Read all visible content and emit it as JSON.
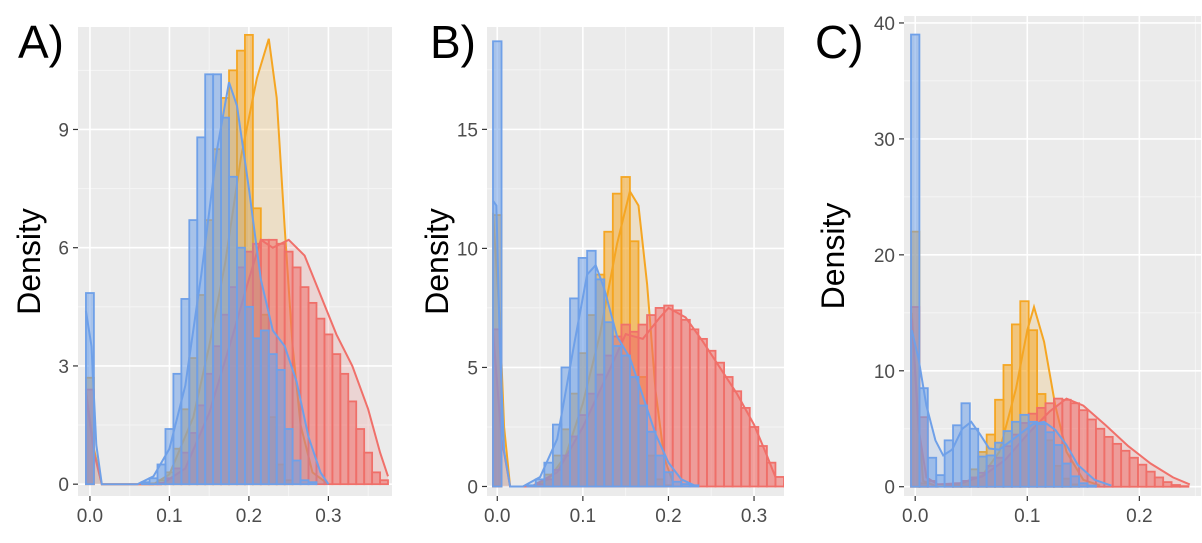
{
  "figure": {
    "colors": {
      "panel_bg": "#ebebeb",
      "grid_major": "#ffffff",
      "grid_minor": "#f5f5f5",
      "blue": "#6fa0e8",
      "orange": "#f5a623",
      "red": "#f0706a"
    }
  },
  "chart_data": [
    {
      "type": "histogram",
      "panel_label": "A)",
      "ylabel": "Density",
      "xlabel": "",
      "xlim": [
        -0.015,
        0.38
      ],
      "ylim": [
        -0.3,
        11.6
      ],
      "xticks": [
        0.0,
        0.1,
        0.2,
        0.3
      ],
      "xtick_labels": [
        "0.0",
        "0.1",
        "0.2",
        "0.3"
      ],
      "yticks": [
        0,
        3,
        6,
        9
      ],
      "ytick_labels": [
        "0",
        "3",
        "6",
        "9"
      ],
      "bin_width": 0.01,
      "series": [
        {
          "color": "orange",
          "bins_start": -0.005,
          "heights": [
            2.7,
            0,
            0,
            0,
            0,
            0,
            0,
            0,
            0.02,
            0.1,
            0.3,
            0.9,
            1.9,
            3.2,
            4.8,
            6.7,
            8.5,
            9.8,
            10.5,
            11.0,
            11.4,
            7.0,
            4.3,
            1.7,
            0.5,
            0.1
          ],
          "curve": [
            [
              -0.005,
              2.4
            ],
            [
              0.005,
              0.9
            ],
            [
              0.015,
              0
            ],
            [
              0.08,
              0
            ],
            [
              0.1,
              0.25
            ],
            [
              0.13,
              1.7
            ],
            [
              0.15,
              3.5
            ],
            [
              0.17,
              5.6
            ],
            [
              0.19,
              8.3
            ],
            [
              0.21,
              10.3
            ],
            [
              0.225,
              11.3
            ],
            [
              0.235,
              9.8
            ],
            [
              0.245,
              6.5
            ],
            [
              0.255,
              3.5
            ],
            [
              0.265,
              1.5
            ],
            [
              0.28,
              0.3
            ],
            [
              0.3,
              0
            ]
          ]
        },
        {
          "color": "red",
          "bins_start": -0.005,
          "heights": [
            2.4,
            0,
            0,
            0,
            0,
            0,
            0,
            0,
            0,
            0.03,
            0.15,
            0.4,
            0.8,
            1.3,
            2.0,
            2.8,
            3.5,
            4.3,
            5.0,
            5.5,
            5.9,
            6.1,
            6.2,
            6.2,
            6.1,
            5.9,
            5.5,
            5.0,
            4.6,
            4.2,
            3.8,
            3.3,
            2.8,
            2.1,
            1.4,
            0.8,
            0.3,
            0.1
          ],
          "curve": [
            [
              -0.005,
              2.3
            ],
            [
              0.005,
              0.8
            ],
            [
              0.015,
              0
            ],
            [
              0.09,
              0
            ],
            [
              0.12,
              0.4
            ],
            [
              0.15,
              1.8
            ],
            [
              0.18,
              3.8
            ],
            [
              0.2,
              5.2
            ],
            [
              0.215,
              6.2
            ],
            [
              0.23,
              6.0
            ],
            [
              0.25,
              6.2
            ],
            [
              0.27,
              5.8
            ],
            [
              0.29,
              4.8
            ],
            [
              0.31,
              3.8
            ],
            [
              0.33,
              3.0
            ],
            [
              0.35,
              1.9
            ],
            [
              0.365,
              0.8
            ],
            [
              0.375,
              0.2
            ]
          ]
        },
        {
          "color": "blue",
          "bins_start": -0.005,
          "heights": [
            4.85,
            0,
            0,
            0,
            0,
            0,
            0,
            0.05,
            0.15,
            0.5,
            1.4,
            2.8,
            4.7,
            6.7,
            8.8,
            10.4,
            10.4,
            9.3,
            7.8,
            6.0,
            4.5,
            3.7,
            3.9,
            3.3,
            2.9,
            1.4,
            0.6,
            0.1,
            0.05
          ],
          "curve": [
            [
              -0.005,
              4.4
            ],
            [
              0.002,
              3.5
            ],
            [
              0.008,
              1.0
            ],
            [
              0.015,
              0
            ],
            [
              0.06,
              0
            ],
            [
              0.08,
              0.2
            ],
            [
              0.1,
              0.9
            ],
            [
              0.12,
              2.5
            ],
            [
              0.14,
              5.3
            ],
            [
              0.16,
              8.5
            ],
            [
              0.175,
              10.2
            ],
            [
              0.185,
              9.6
            ],
            [
              0.2,
              7.5
            ],
            [
              0.215,
              5.2
            ],
            [
              0.23,
              3.9
            ],
            [
              0.245,
              3.5
            ],
            [
              0.26,
              2.6
            ],
            [
              0.275,
              1.2
            ],
            [
              0.29,
              0.3
            ],
            [
              0.3,
              0
            ]
          ]
        }
      ]
    },
    {
      "type": "histogram",
      "panel_label": "B)",
      "ylabel": "Density",
      "xlabel": "",
      "xlim": [
        -0.012,
        0.335
      ],
      "ylim": [
        -0.4,
        19.3
      ],
      "xticks": [
        0.0,
        0.1,
        0.2,
        0.3
      ],
      "xtick_labels": [
        "0.0",
        "0.1",
        "0.2",
        "0.3"
      ],
      "yticks": [
        0,
        5,
        10,
        15
      ],
      "ytick_labels": [
        "0",
        "5",
        "10",
        "15"
      ],
      "bin_width": 0.01,
      "series": [
        {
          "color": "orange",
          "bins_start": -0.005,
          "heights": [
            11.4,
            0,
            0,
            0,
            0.03,
            0.15,
            0.5,
            1.3,
            2.4,
            3.9,
            5.6,
            7.2,
            8.9,
            10.7,
            12.3,
            13.0,
            10.3,
            4.6,
            1.3,
            0.3,
            0.05
          ],
          "curve": [
            [
              -0.005,
              11.5
            ],
            [
              0.003,
              7.0
            ],
            [
              0.008,
              2.5
            ],
            [
              0.015,
              0
            ],
            [
              0.04,
              0
            ],
            [
              0.06,
              0.3
            ],
            [
              0.08,
              1.3
            ],
            [
              0.1,
              3.5
            ],
            [
              0.12,
              6.4
            ],
            [
              0.14,
              10.2
            ],
            [
              0.155,
              12.4
            ],
            [
              0.165,
              11.8
            ],
            [
              0.175,
              8.5
            ],
            [
              0.185,
              4.0
            ],
            [
              0.195,
              1.2
            ],
            [
              0.205,
              0.2
            ]
          ]
        },
        {
          "color": "red",
          "bins_start": -0.005,
          "heights": [
            6.6,
            0,
            0,
            0,
            0.02,
            0.1,
            0.3,
            0.7,
            1.3,
            2.1,
            3.0,
            3.9,
            4.7,
            5.5,
            6.3,
            6.8,
            6.5,
            6.8,
            7.2,
            7.5,
            7.6,
            7.4,
            7.0,
            6.6,
            6.2,
            5.7,
            5.2,
            4.6,
            4.0,
            3.3,
            2.5,
            1.7,
            1.0,
            0.4,
            0.1
          ],
          "curve": [
            [
              -0.005,
              6.5
            ],
            [
              0.005,
              2.0
            ],
            [
              0.015,
              0
            ],
            [
              0.04,
              0
            ],
            [
              0.07,
              0.6
            ],
            [
              0.1,
              2.5
            ],
            [
              0.13,
              4.8
            ],
            [
              0.15,
              6.4
            ],
            [
              0.17,
              6.2
            ],
            [
              0.19,
              7.1
            ],
            [
              0.2,
              7.5
            ],
            [
              0.22,
              7.1
            ],
            [
              0.24,
              6.1
            ],
            [
              0.26,
              5.0
            ],
            [
              0.28,
              3.9
            ],
            [
              0.3,
              2.6
            ],
            [
              0.315,
              1.3
            ],
            [
              0.325,
              0.4
            ]
          ]
        },
        {
          "color": "blue",
          "bins_start": -0.005,
          "heights": [
            18.7,
            0,
            0,
            0,
            0.05,
            0.3,
            1.0,
            2.6,
            5.0,
            7.9,
            9.6,
            9.9,
            8.7,
            6.9,
            5.9,
            5.5,
            4.6,
            3.4,
            2.3,
            1.3,
            0.6,
            0.2,
            0.1,
            0.05
          ],
          "curve": [
            [
              -0.005,
              12.0
            ],
            [
              -0.001,
              11.8
            ],
            [
              0.003,
              6.0
            ],
            [
              0.008,
              1.5
            ],
            [
              0.015,
              0
            ],
            [
              0.03,
              0
            ],
            [
              0.05,
              0.4
            ],
            [
              0.07,
              2.0
            ],
            [
              0.09,
              6.0
            ],
            [
              0.105,
              8.9
            ],
            [
              0.115,
              9.3
            ],
            [
              0.125,
              8.3
            ],
            [
              0.14,
              6.3
            ],
            [
              0.155,
              5.4
            ],
            [
              0.17,
              3.8
            ],
            [
              0.185,
              2.2
            ],
            [
              0.2,
              1.0
            ],
            [
              0.215,
              0.3
            ],
            [
              0.23,
              0.05
            ]
          ]
        }
      ]
    },
    {
      "type": "histogram",
      "panel_label": "C)",
      "ylabel": "Density",
      "xlabel": "",
      "xlim": [
        -0.01,
        0.255
      ],
      "ylim": [
        -0.8,
        40.6
      ],
      "xticks": [
        0.0,
        0.1,
        0.2
      ],
      "xtick_labels": [
        "0.0",
        "0.1",
        "0.2"
      ],
      "yticks": [
        0,
        10,
        20,
        30,
        40
      ],
      "ytick_labels": [
        "0",
        "10",
        "20",
        "30",
        "40"
      ],
      "bin_width": 0.0075,
      "series": [
        {
          "color": "orange",
          "bins_start": -0.00375,
          "heights": [
            22,
            0.3,
            0,
            0,
            0,
            0.1,
            0.5,
            1.5,
            3.0,
            4.5,
            7.5,
            10.5,
            14.0,
            16.0,
            13.5,
            8.0,
            4.0,
            1.8,
            0.7,
            0.2
          ],
          "curve": [
            [
              -0.003,
              15.0
            ],
            [
              0.002,
              7.0
            ],
            [
              0.007,
              0.5
            ],
            [
              0.02,
              0
            ],
            [
              0.04,
              0.2
            ],
            [
              0.06,
              1.0
            ],
            [
              0.075,
              3.0
            ],
            [
              0.09,
              8.5
            ],
            [
              0.1,
              13.5
            ],
            [
              0.106,
              15.5
            ],
            [
              0.115,
              12.5
            ],
            [
              0.125,
              7.0
            ],
            [
              0.135,
              3.0
            ],
            [
              0.15,
              0.6
            ],
            [
              0.165,
              0.1
            ]
          ]
        },
        {
          "color": "red",
          "bins_start": -0.00375,
          "heights": [
            15.5,
            6.0,
            0.5,
            0,
            0.2,
            0.3,
            0.5,
            0.8,
            1.2,
            1.8,
            2.5,
            3.5,
            4.5,
            5.5,
            6.3,
            6.8,
            7.2,
            7.6,
            7.5,
            7.2,
            6.6,
            5.8,
            5.0,
            4.3,
            3.7,
            3.1,
            2.5,
            1.9,
            1.3,
            0.8,
            0.4,
            0.15,
            0.05
          ],
          "curve": [
            [
              -0.003,
              14.5
            ],
            [
              0.003,
              5.0
            ],
            [
              0.01,
              0.8
            ],
            [
              0.02,
              0.2
            ],
            [
              0.04,
              0.3
            ],
            [
              0.06,
              0.9
            ],
            [
              0.08,
              2.3
            ],
            [
              0.1,
              4.5
            ],
            [
              0.12,
              6.5
            ],
            [
              0.135,
              7.6
            ],
            [
              0.15,
              7.0
            ],
            [
              0.17,
              5.3
            ],
            [
              0.19,
              3.5
            ],
            [
              0.21,
              2.0
            ],
            [
              0.23,
              0.8
            ],
            [
              0.245,
              0.2
            ]
          ]
        },
        {
          "color": "blue",
          "bins_start": -0.00375,
          "heights": [
            39,
            8.5,
            2.5,
            1.0,
            4.0,
            5.3,
            7.2,
            5.0,
            2.6,
            2.7,
            3.8,
            4.8,
            5.6,
            6.2,
            5.6,
            5.4,
            4.7,
            3.6,
            2.0,
            0.9,
            0.3,
            0.1
          ],
          "curve": [
            [
              -0.003,
              13.5
            ],
            [
              0.003,
              11.0
            ],
            [
              0.01,
              7.0
            ],
            [
              0.018,
              4.0
            ],
            [
              0.025,
              2.7
            ],
            [
              0.033,
              3.2
            ],
            [
              0.042,
              5.0
            ],
            [
              0.05,
              5.6
            ],
            [
              0.058,
              4.5
            ],
            [
              0.066,
              3.3
            ],
            [
              0.075,
              3.2
            ],
            [
              0.09,
              4.3
            ],
            [
              0.105,
              5.4
            ],
            [
              0.115,
              5.6
            ],
            [
              0.125,
              4.9
            ],
            [
              0.135,
              3.6
            ],
            [
              0.145,
              1.9
            ],
            [
              0.16,
              0.6
            ],
            [
              0.175,
              0.1
            ]
          ]
        }
      ]
    }
  ]
}
